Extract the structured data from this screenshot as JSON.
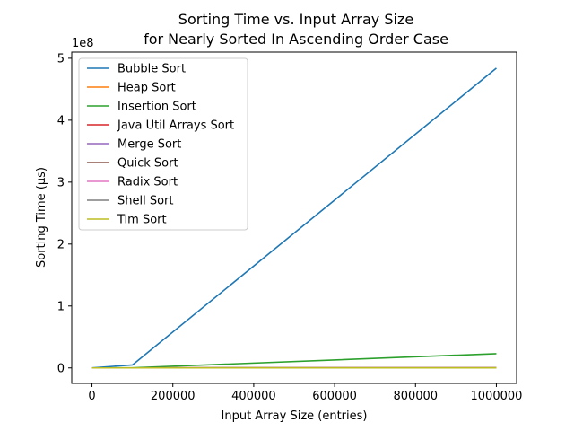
{
  "chart_data": {
    "type": "line",
    "title": "Sorting Time vs. Input Array Size",
    "subtitle": "for Nearly Sorted In Ascending Order Case",
    "xlabel": "Input Array Size (entries)",
    "ylabel": "Sorting Time (µs)",
    "y_offset_label": "1e8",
    "x": [
      10,
      100,
      1000,
      10000,
      100000,
      1000000
    ],
    "xlim": [
      -50000,
      1050000
    ],
    "ylim": [
      -25000000,
      510000000
    ],
    "x_ticks": [
      0,
      200000,
      400000,
      600000,
      800000,
      1000000
    ],
    "x_tick_labels": [
      "0",
      "200000",
      "400000",
      "600000",
      "800000",
      "1000000"
    ],
    "y_ticks": [
      0,
      100000000,
      200000000,
      300000000,
      400000000,
      500000000
    ],
    "y_tick_labels": [
      "0",
      "1",
      "2",
      "3",
      "4",
      "5"
    ],
    "grid": false,
    "legend_position": "upper-left",
    "series": [
      {
        "name": "Bubble Sort",
        "color": "#1f77b4",
        "values": [
          0,
          0,
          50000,
          500000,
          4800000,
          484000000
        ]
      },
      {
        "name": "Heap Sort",
        "color": "#ff7f0e",
        "values": [
          0,
          0,
          100,
          1000,
          20000,
          200000
        ]
      },
      {
        "name": "Insertion Sort",
        "color": "#2ca02c",
        "values": [
          0,
          0,
          2000,
          30000,
          200000,
          23000000
        ]
      },
      {
        "name": "Java Util Arrays Sort",
        "color": "#d62728",
        "values": [
          0,
          0,
          50,
          500,
          10000,
          100000
        ]
      },
      {
        "name": "Merge Sort",
        "color": "#9467bd",
        "values": [
          0,
          0,
          100,
          1000,
          15000,
          150000
        ]
      },
      {
        "name": "Quick Sort",
        "color": "#8c564b",
        "values": [
          0,
          0,
          100,
          1000,
          15000,
          150000
        ]
      },
      {
        "name": "Radix Sort",
        "color": "#e377c2",
        "values": [
          0,
          0,
          100,
          1000,
          10000,
          100000
        ]
      },
      {
        "name": "Shell Sort",
        "color": "#7f7f7f",
        "values": [
          0,
          0,
          100,
          1000,
          10000,
          100000
        ]
      },
      {
        "name": "Tim Sort",
        "color": "#bcbd22",
        "values": [
          0,
          0,
          50,
          500,
          10000,
          100000
        ]
      }
    ]
  }
}
